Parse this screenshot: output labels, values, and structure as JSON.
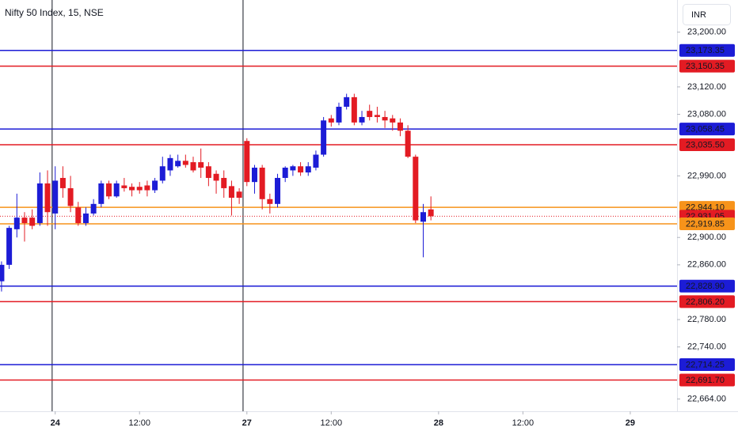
{
  "chart_data": {
    "type": "candlestick",
    "title": "Nifty 50 Index, 15, NSE",
    "currency": "INR",
    "up_color": "#1c1cd6",
    "down_color": "#e31b23",
    "x": [
      -7,
      -6,
      -5,
      -4,
      -3,
      -2,
      -1,
      0,
      1,
      2,
      3,
      4,
      5,
      6,
      7,
      8,
      9,
      10,
      11,
      12,
      13,
      14,
      15,
      16,
      17,
      18,
      19,
      20,
      21,
      22,
      23,
      24,
      25,
      26,
      27,
      28,
      29,
      30,
      31,
      32,
      33,
      34,
      35,
      36,
      37,
      38,
      39,
      40,
      41,
      42,
      43,
      44,
      45,
      46,
      47,
      48,
      49
    ],
    "open": [
      22836,
      22860,
      22912,
      22929,
      22929,
      22921,
      22979,
      22935,
      22987,
      22972,
      22944,
      22921,
      22935,
      22949,
      22979,
      22960,
      22976,
      22974,
      22974,
      22976,
      22969,
      22983,
      22998,
      23004,
      23012,
      23010,
      23010,
      23004,
      22993,
      22987,
      22975,
      22967,
      23041,
      22981,
      23002,
      22956,
      22949,
      22987,
      22998,
      23004,
      22995,
      23002,
      23021,
      23074,
      23068,
      23091,
      23105,
      23068,
      23085,
      23079,
      23076,
      23074,
      23068,
      23056,
      23018,
      22923,
      22941
    ],
    "high": [
      22865,
      22917,
      22964,
      22937,
      22941,
      22995,
      22998,
      23004,
      23004,
      22990,
      22952,
      22944,
      22956,
      22983,
      22983,
      22983,
      22987,
      22979,
      22981,
      22983,
      22987,
      23018,
      23021,
      23021,
      23021,
      23018,
      23030,
      23010,
      22998,
      22998,
      22983,
      22972,
      23045,
      23006,
      23006,
      22964,
      22993,
      23004,
      23006,
      23010,
      23010,
      23027,
      23076,
      23079,
      23097,
      23110,
      23110,
      23085,
      23094,
      23091,
      23085,
      23079,
      23074,
      23064,
      23021,
      22949,
      22960
    ],
    "low": [
      22821,
      22854,
      22900,
      22894,
      22912,
      22917,
      22917,
      22912,
      22958,
      22937,
      22917,
      22917,
      22932,
      22944,
      22956,
      22958,
      22967,
      22960,
      22964,
      22960,
      22965,
      22979,
      22990,
      23002,
      23002,
      22995,
      22987,
      22975,
      22964,
      22958,
      22932,
      22949,
      22975,
      22964,
      22941,
      22935,
      22944,
      22981,
      22990,
      22990,
      22990,
      22998,
      23018,
      23062,
      23064,
      23087,
      23064,
      23064,
      23071,
      23068,
      23060,
      23056,
      23048,
      23016,
      22921,
      22871,
      22925
    ],
    "close": [
      22860,
      22914,
      22929,
      22921,
      22917,
      22979,
      22937,
      22983,
      22972,
      22946,
      22921,
      22935,
      22949,
      22979,
      22960,
      22979,
      22972,
      22969,
      22969,
      22969,
      22983,
      23004,
      23016,
      23012,
      23006,
      22998,
      23002,
      22987,
      22983,
      22972,
      22958,
      22958,
      22981,
      23002,
      22956,
      22949,
      22987,
      23002,
      23004,
      22995,
      23004,
      23021,
      23071,
      23068,
      23091,
      23105,
      23068,
      23076,
      23076,
      23076,
      23071,
      23068,
      23056,
      23018,
      22925,
      22937,
      22931.05
    ],
    "xlim": [
      -7.2,
      81.1
    ],
    "ylim": [
      22646,
      23247
    ],
    "xticks": [
      {
        "value": 0,
        "label": "24",
        "bold": true
      },
      {
        "value": 11,
        "label": "12:00",
        "bold": false
      },
      {
        "value": 25,
        "label": "27",
        "bold": true
      },
      {
        "value": 36,
        "label": "12:00",
        "bold": false
      },
      {
        "value": 50,
        "label": "28",
        "bold": true
      },
      {
        "value": 61,
        "label": "12:00",
        "bold": false
      },
      {
        "value": 75,
        "label": "29",
        "bold": true
      }
    ],
    "yticks": [
      {
        "value": 23200,
        "label": "23,200.00"
      },
      {
        "value": 23120,
        "label": "23,120.00"
      },
      {
        "value": 23080,
        "label": "23,080.00"
      },
      {
        "value": 22990,
        "label": "22,990.00"
      },
      {
        "value": 22900,
        "label": "22,900.00"
      },
      {
        "value": 22860,
        "label": "22,860.00"
      },
      {
        "value": 22780,
        "label": "22,780.00"
      },
      {
        "value": 22740,
        "label": "22,740.00"
      },
      {
        "value": 22664,
        "label": "22,664.00"
      }
    ],
    "vlines": [
      -0.4,
      24.5
    ],
    "levels": [
      {
        "value": 23173.35,
        "label": "23,173.35",
        "color": "#1c1cd6",
        "style": "solid"
      },
      {
        "value": 23150.35,
        "label": "23,150.35",
        "color": "#e31b23",
        "style": "solid"
      },
      {
        "value": 23058.45,
        "label": "23,058.45",
        "color": "#1c1cd6",
        "style": "solid"
      },
      {
        "value": 23035.5,
        "label": "23,035.50",
        "color": "#e31b23",
        "style": "solid"
      },
      {
        "value": 22944.1,
        "label": "22,944.10",
        "color": "#f7931a",
        "style": "solid"
      },
      {
        "value": 22931.05,
        "label": "22,931.05",
        "color": "#e31b23",
        "style": "dotted"
      },
      {
        "value": 22919.85,
        "label": "22,919.85",
        "color": "#f7931a",
        "style": "solid"
      },
      {
        "value": 22828.9,
        "label": "22,828.90",
        "color": "#1c1cd6",
        "style": "solid"
      },
      {
        "value": 22806.2,
        "label": "22,806.20",
        "color": "#e31b23",
        "style": "solid"
      },
      {
        "value": 22714.25,
        "label": "22,714.25",
        "color": "#1c1cd6",
        "style": "solid"
      },
      {
        "value": 22691.7,
        "label": "22,691.70",
        "color": "#e31b23",
        "style": "solid"
      }
    ]
  }
}
